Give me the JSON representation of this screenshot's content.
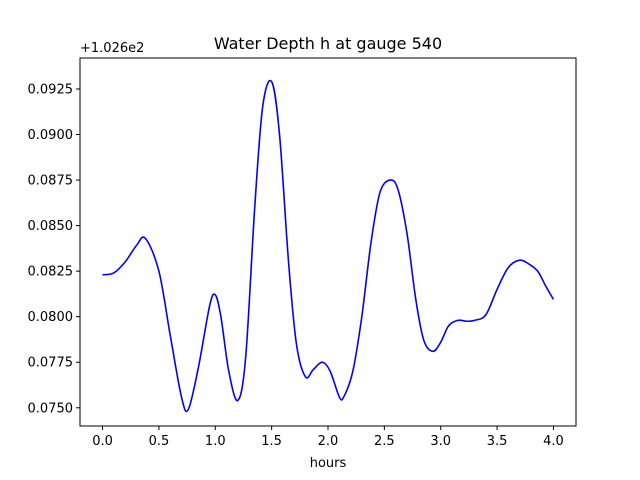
{
  "chart_data": {
    "type": "line",
    "title": "Water Depth h at gauge 540",
    "xlabel": "hours",
    "ylabel": "",
    "offset_label": "+1.026e2",
    "xlim": [
      -0.2,
      4.2
    ],
    "ylim": [
      0.074,
      0.0942
    ],
    "x_ticks": [
      0.0,
      0.5,
      1.0,
      1.5,
      2.0,
      2.5,
      3.0,
      3.5,
      4.0
    ],
    "x_tick_labels": [
      "0.0",
      "0.5",
      "1.0",
      "1.5",
      "2.0",
      "2.5",
      "3.0",
      "3.5",
      "4.0"
    ],
    "y_ticks": [
      0.075,
      0.0775,
      0.08,
      0.0825,
      0.085,
      0.0875,
      0.09,
      0.0925
    ],
    "y_tick_labels": [
      "0.0750",
      "0.0775",
      "0.0800",
      "0.0825",
      "0.0850",
      "0.0875",
      "0.0900",
      "0.0925"
    ],
    "grid": false,
    "series": [
      {
        "color": "#0000ff",
        "x": [
          0.0,
          0.1,
          0.2,
          0.3,
          0.38,
          0.5,
          0.6,
          0.7,
          0.76,
          0.85,
          0.95,
          1.0,
          1.05,
          1.12,
          1.2,
          1.27,
          1.35,
          1.42,
          1.5,
          1.57,
          1.65,
          1.72,
          1.8,
          1.87,
          1.95,
          2.02,
          2.1,
          2.14,
          2.22,
          2.3,
          2.38,
          2.46,
          2.55,
          2.62,
          2.7,
          2.78,
          2.85,
          2.93,
          3.0,
          3.07,
          3.15,
          3.23,
          3.3,
          3.4,
          3.5,
          3.6,
          3.7,
          3.78,
          3.86,
          3.93,
          4.0
        ],
        "y": [
          0.0823,
          0.0824,
          0.083,
          0.0839,
          0.0843,
          0.0825,
          0.079,
          0.0756,
          0.0749,
          0.0772,
          0.0806,
          0.0812,
          0.08,
          0.077,
          0.0754,
          0.0778,
          0.086,
          0.0915,
          0.0929,
          0.09,
          0.083,
          0.0785,
          0.0767,
          0.0771,
          0.0775,
          0.077,
          0.0756,
          0.0756,
          0.077,
          0.08,
          0.084,
          0.0868,
          0.0875,
          0.087,
          0.0846,
          0.0809,
          0.0787,
          0.0781,
          0.0786,
          0.0795,
          0.0798,
          0.07975,
          0.0798,
          0.0801,
          0.0815,
          0.0827,
          0.0831,
          0.0829,
          0.0825,
          0.0817,
          0.08095
        ]
      }
    ]
  }
}
